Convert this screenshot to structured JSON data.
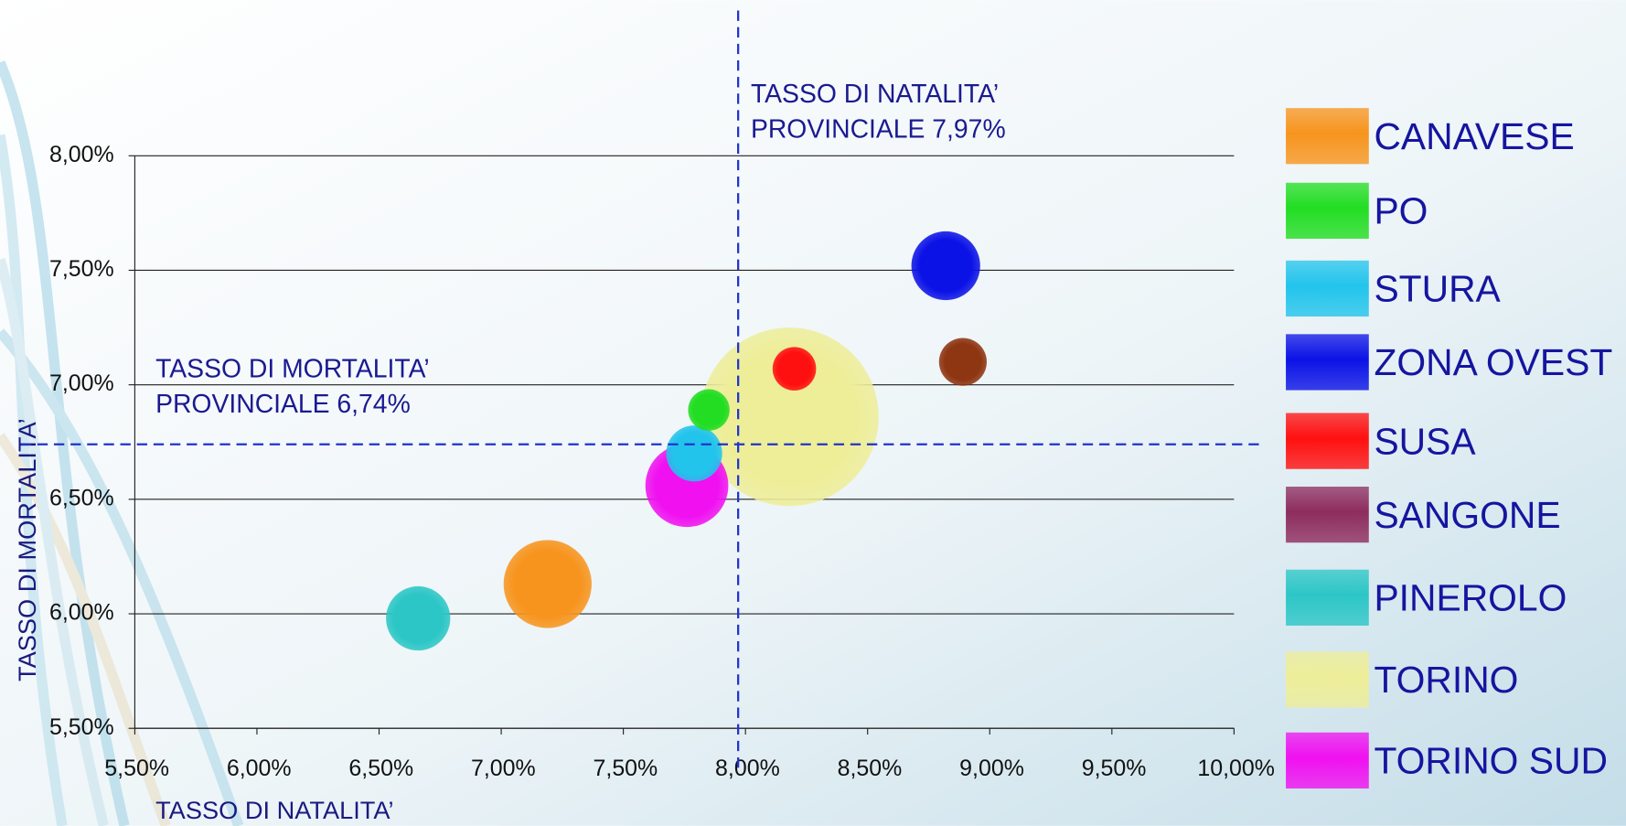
{
  "chart_data": {
    "type": "bubble",
    "x_label": "TASSO DI NATALITA’",
    "y_label": "TASSO DI MORTALITA’",
    "xlim": [
      5.5,
      10
    ],
    "ylim": [
      5.5,
      8
    ],
    "xticks": [
      {
        "value": 5.5,
        "label": "5,50%"
      },
      {
        "value": 6,
        "label": "6,00%"
      },
      {
        "value": 6.5,
        "label": "6,50%"
      },
      {
        "value": 7,
        "label": "7,00%"
      },
      {
        "value": 7.5,
        "label": "7,50%"
      },
      {
        "value": 8,
        "label": "8,00%"
      },
      {
        "value": 8.5,
        "label": "8,50%"
      },
      {
        "value": 9,
        "label": "9,00%"
      },
      {
        "value": 9.5,
        "label": "9,50%"
      },
      {
        "value": 10,
        "label": "10,00%"
      }
    ],
    "yticks": [
      {
        "value": 5.5,
        "label": "5,50%"
      },
      {
        "value": 6,
        "label": "6,00%"
      },
      {
        "value": 6.5,
        "label": "6,50%"
      },
      {
        "value": 7,
        "label": "7,00%"
      },
      {
        "value": 7.5,
        "label": "7,50%"
      },
      {
        "value": 8,
        "label": "8,00%"
      }
    ],
    "grid": true,
    "reference_lines": {
      "x": {
        "value": 7.97,
        "label": [
          "TASSO DI NATALITA’",
          "PROVINCIALE 7,97%"
        ]
      },
      "y": {
        "value": 6.74,
        "label": [
          "TASSO DI MORTALITA’",
          "PROVINCIALE 6,74%"
        ]
      }
    },
    "legend": "right",
    "series": [
      {
        "name": "CANAVESE",
        "color": "#f7941d",
        "x": 7.19,
        "y": 6.13,
        "size": 18
      },
      {
        "name": "PO",
        "color": "#22dd22",
        "x": 7.85,
        "y": 6.89,
        "size": 4
      },
      {
        "name": "STURA",
        "color": "#22c4ec",
        "x": 7.79,
        "y": 6.7,
        "size": 7.3
      },
      {
        "name": "ZONA OVEST",
        "color": "#0b12e6",
        "x": 8.82,
        "y": 7.52,
        "size": 11
      },
      {
        "name": "SUSA",
        "color": "#ff1010",
        "x": 8.2,
        "y": 7.07,
        "size": 4.4
      },
      {
        "name": "SANGONE",
        "color": "#8e2c5e",
        "bubble_color": "#8e3512",
        "x": 8.89,
        "y": 7.1,
        "size": 5.3
      },
      {
        "name": "PINEROLO",
        "color": "#2cc6c6",
        "x": 6.66,
        "y": 5.98,
        "size": 9.6
      },
      {
        "name": "TORINO",
        "color": "#eeee99",
        "x": 8.18,
        "y": 6.86,
        "size": 74
      },
      {
        "name": "TORINO SUD",
        "color": "#f010f0",
        "x": 7.76,
        "y": 6.56,
        "size": 16
      }
    ]
  }
}
